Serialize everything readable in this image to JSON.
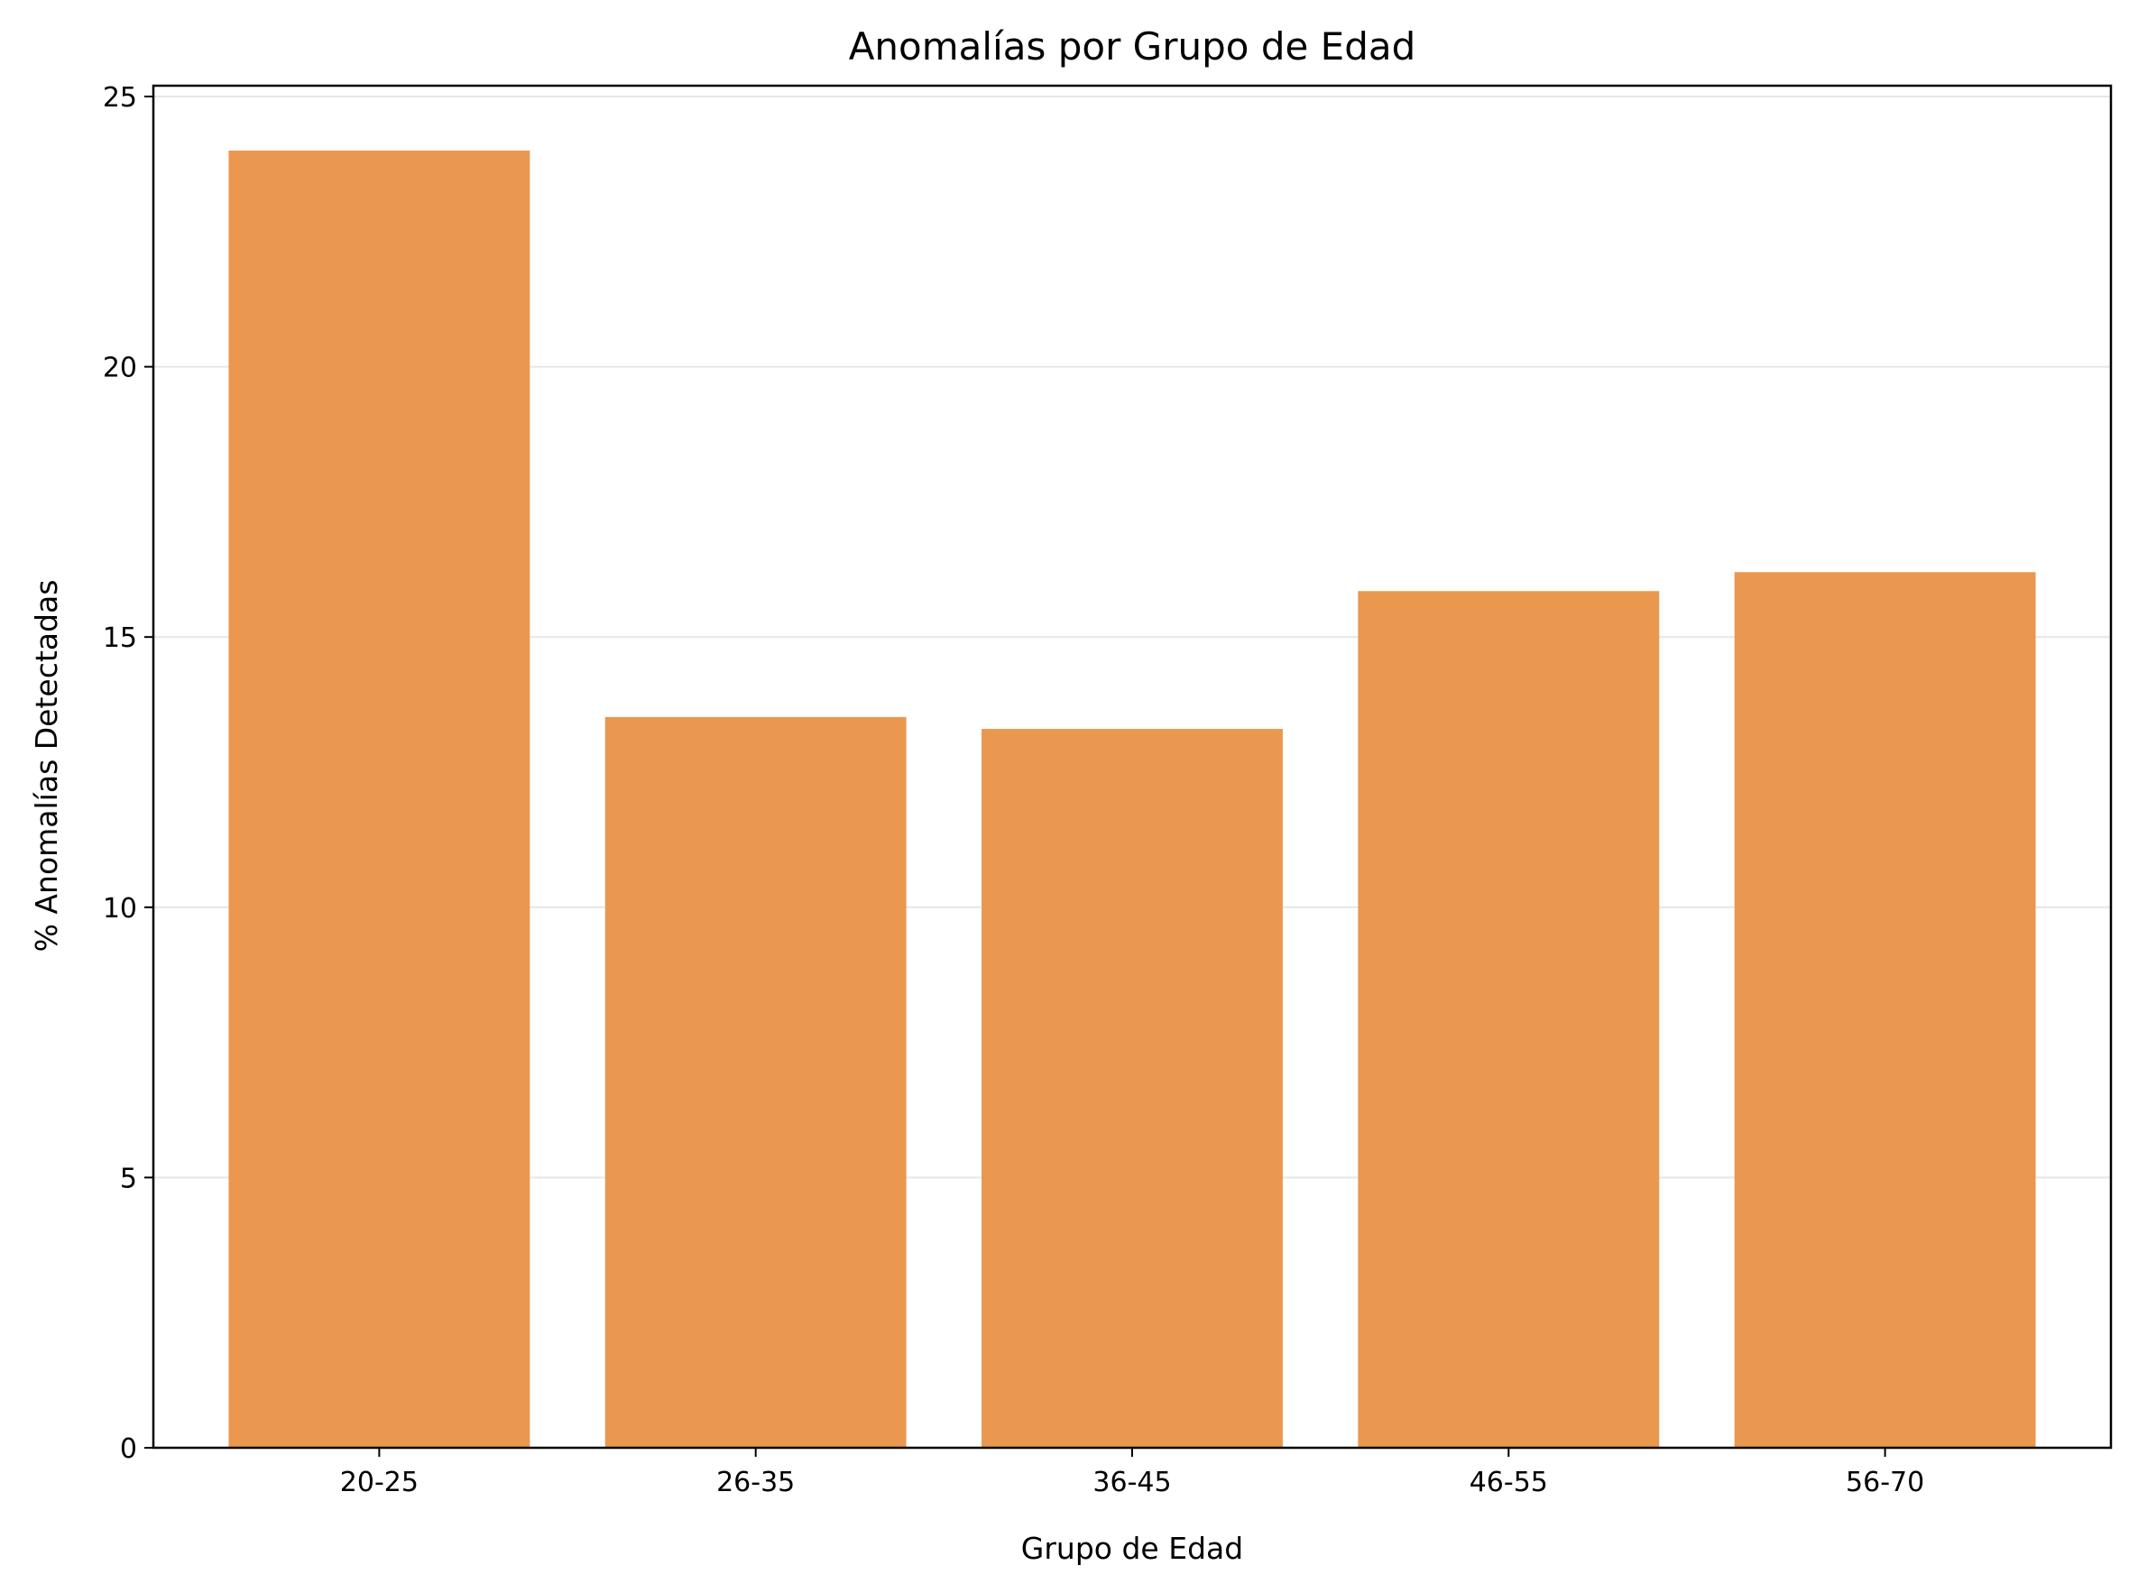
{
  "chart_data": {
    "type": "bar",
    "title": "Anomalías por Grupo de Edad",
    "xlabel": "Grupo de Edad",
    "ylabel": "% Anomalías Detectadas",
    "categories": [
      "20-25",
      "26-35",
      "36-45",
      "46-55",
      "56-70"
    ],
    "values": [
      24.0,
      13.52,
      13.3,
      15.85,
      16.2
    ],
    "ylim": [
      0,
      25.2
    ],
    "yticks": [
      0,
      5,
      10,
      15,
      20,
      25
    ],
    "grid": "y",
    "legend": "none",
    "colors": {
      "bar": "#EA974F",
      "grid": "#e6e6e6",
      "axis": "#000000"
    }
  }
}
